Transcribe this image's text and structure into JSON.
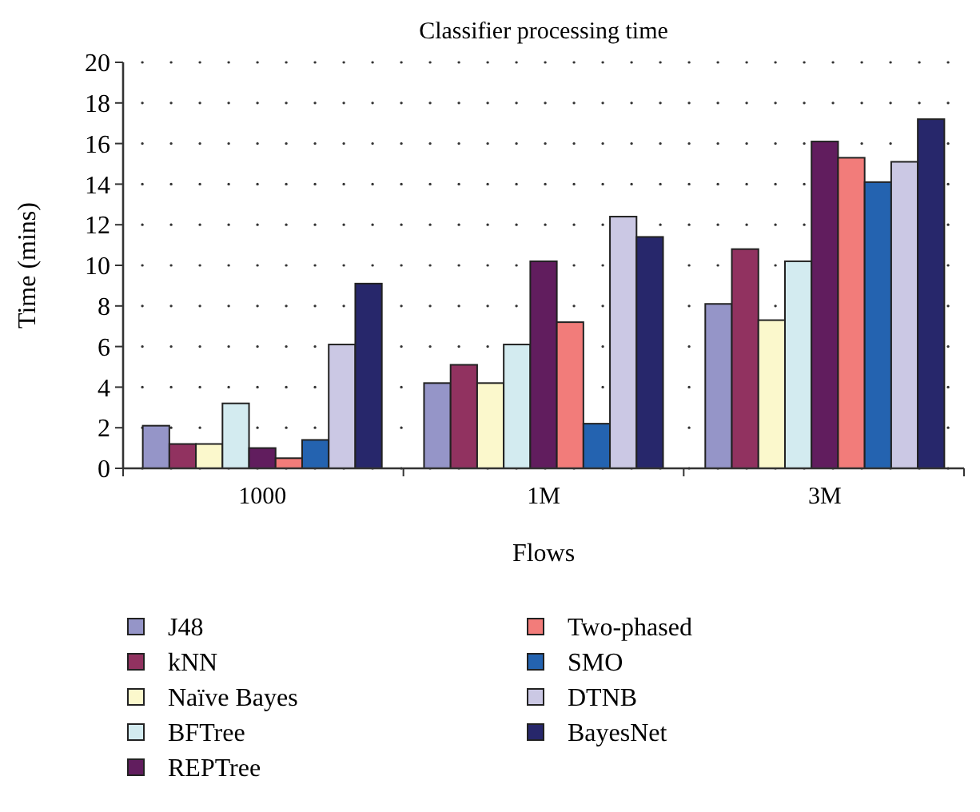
{
  "chart_data": {
    "type": "bar",
    "title": "Classifier processing time",
    "xlabel": "Flows",
    "ylabel": "Time (mins)",
    "categories": [
      "1000",
      "1M",
      "3M"
    ],
    "series": [
      {
        "name": "J48",
        "color": "#9595c8",
        "values": [
          2.1,
          4.2,
          8.1
        ]
      },
      {
        "name": "kNN",
        "color": "#913260",
        "values": [
          1.2,
          5.1,
          10.8
        ]
      },
      {
        "name": "Naïve Bayes",
        "color": "#fbf8cc",
        "values": [
          1.2,
          4.2,
          7.3
        ]
      },
      {
        "name": "BFTree",
        "color": "#d3ebf0",
        "values": [
          3.2,
          6.1,
          10.2
        ]
      },
      {
        "name": "REPTree",
        "color": "#611d5e",
        "values": [
          1.0,
          10.2,
          16.1
        ]
      },
      {
        "name": "Two-phased",
        "color": "#f27c7a",
        "values": [
          0.5,
          7.2,
          15.3
        ]
      },
      {
        "name": "SMO",
        "color": "#2463b0",
        "values": [
          1.4,
          2.2,
          14.1
        ]
      },
      {
        "name": "DTNB",
        "color": "#cbc8e4",
        "values": [
          6.1,
          12.4,
          15.1
        ]
      },
      {
        "name": "BayesNet",
        "color": "#27276b",
        "values": [
          9.1,
          11.4,
          17.2
        ]
      }
    ],
    "ylim": [
      0,
      20
    ],
    "yticks": [
      0,
      2,
      4,
      6,
      8,
      10,
      12,
      14,
      16,
      18,
      20
    ],
    "grid": "y",
    "legend": "bottom"
  }
}
